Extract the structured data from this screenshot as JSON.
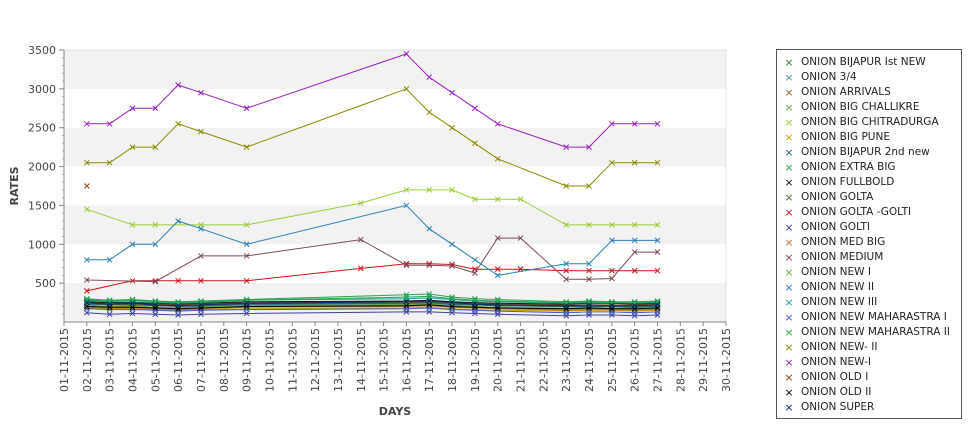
{
  "chart_data": {
    "type": "line",
    "xlabel": "DAYS",
    "ylabel": "RATES",
    "ylim": [
      0,
      3500
    ],
    "yticks": [
      "500",
      "1000",
      "1500",
      "2000",
      "2500",
      "3000",
      "3500"
    ],
    "grid": "horizontal bands",
    "legend_position": "right",
    "x": [
      "01-11-2015",
      "02-11-2015",
      "03-11-2015",
      "04-11-2015",
      "05-11-2015",
      "06-11-2015",
      "07-11-2015",
      "08-11-2015",
      "09-11-2015",
      "10-11-2015",
      "11-11-2015",
      "12-11-2015",
      "13-11-2015",
      "14-11-2015",
      "15-11-2015",
      "16-11-2015",
      "17-11-2015",
      "18-11-2015",
      "19-11-2015",
      "20-11-2015",
      "21-11-2015",
      "22-11-2015",
      "23-11-2015",
      "24-11-2015",
      "25-11-2015",
      "26-11-2015",
      "27-11-2015",
      "28-11-2015",
      "29-11-2015",
      "30-11-2015"
    ],
    "series": [
      {
        "name": " ONION BIJAPUR Ist NEW",
        "color": "#2e7d32",
        "values": [
          null,
          280,
          260,
          250,
          230,
          200,
          210,
          null,
          220,
          null,
          null,
          null,
          null,
          null,
          null,
          240,
          250,
          230,
          220,
          210,
          null,
          null,
          200,
          210,
          200,
          200,
          210,
          null,
          null,
          null
        ]
      },
      {
        "name": "ONION 3/4",
        "color": "#4e9a9a",
        "values": [
          null,
          220,
          200,
          210,
          190,
          180,
          200,
          null,
          220,
          null,
          null,
          null,
          null,
          null,
          null,
          230,
          240,
          220,
          200,
          190,
          null,
          null,
          170,
          180,
          180,
          170,
          190,
          null,
          null,
          null
        ]
      },
      {
        "name": "ONION ARRIVALS",
        "color": "#8b5a2b",
        "values": [
          null,
          250,
          240,
          240,
          230,
          220,
          230,
          null,
          250,
          null,
          null,
          null,
          null,
          null,
          null,
          260,
          270,
          250,
          240,
          230,
          null,
          null,
          220,
          220,
          220,
          220,
          230,
          null,
          null,
          null
        ]
      },
      {
        "name": "ONION BIG CHALLIKRE",
        "color": "#6aa84f",
        "values": [
          null,
          200,
          190,
          200,
          190,
          170,
          180,
          null,
          200,
          null,
          null,
          null,
          null,
          null,
          null,
          210,
          220,
          200,
          190,
          180,
          null,
          null,
          160,
          170,
          170,
          160,
          170,
          null,
          null,
          null
        ]
      },
      {
        "name": "ONION BIG CHITRADURGA",
        "color": "#9acd32",
        "values": [
          null,
          1450,
          null,
          1250,
          1250,
          null,
          1250,
          null,
          1250,
          null,
          null,
          null,
          null,
          1530,
          null,
          1700,
          1700,
          1700,
          1580,
          1580,
          1580,
          null,
          1250,
          1250,
          1250,
          1250,
          1250,
          null,
          null,
          null
        ]
      },
      {
        "name": "ONION BIG PUNE",
        "color": "#c8a000",
        "values": [
          null,
          180,
          170,
          170,
          160,
          150,
          160,
          null,
          170,
          null,
          null,
          null,
          null,
          null,
          null,
          180,
          190,
          170,
          160,
          150,
          null,
          null,
          140,
          150,
          150,
          140,
          150,
          null,
          null,
          null
        ]
      },
      {
        "name": "ONION BIJAPUR 2nd new",
        "color": "#1f5f7a",
        "values": [
          null,
          230,
          220,
          220,
          210,
          200,
          210,
          null,
          230,
          null,
          null,
          null,
          null,
          null,
          null,
          240,
          250,
          230,
          220,
          210,
          null,
          null,
          200,
          200,
          200,
          190,
          200,
          null,
          null,
          null
        ]
      },
      {
        "name": "ONION EXTRA BIG",
        "color": "#2f9e5a",
        "values": [
          null,
          300,
          280,
          290,
          270,
          260,
          270,
          null,
          290,
          null,
          null,
          null,
          null,
          null,
          null,
          350,
          360,
          320,
          300,
          290,
          null,
          null,
          260,
          270,
          260,
          260,
          270,
          null,
          null,
          null
        ]
      },
      {
        "name": "ONION FULLBOLD",
        "color": "#111111",
        "values": [
          null,
          260,
          250,
          250,
          240,
          230,
          240,
          null,
          260,
          null,
          null,
          null,
          null,
          null,
          null,
          270,
          280,
          260,
          250,
          240,
          null,
          null,
          230,
          240,
          240,
          230,
          240,
          null,
          null,
          null
        ]
      },
      {
        "name": "ONION GOLTA",
        "color": "#556b2f",
        "values": [
          null,
          240,
          230,
          230,
          220,
          210,
          220,
          null,
          240,
          null,
          null,
          null,
          null,
          null,
          null,
          250,
          260,
          240,
          230,
          220,
          null,
          null,
          210,
          220,
          210,
          210,
          220,
          null,
          null,
          null
        ]
      },
      {
        "name": "ONION GOLTA -GOLTI",
        "color": "#d0101a",
        "values": [
          null,
          400,
          null,
          530,
          530,
          530,
          530,
          null,
          530,
          null,
          null,
          null,
          null,
          690,
          null,
          750,
          750,
          740,
          680,
          680,
          680,
          null,
          660,
          660,
          660,
          660,
          660,
          null,
          null,
          null
        ]
      },
      {
        "name": "ONION GOLTI",
        "color": "#4040a0",
        "values": [
          null,
          120,
          100,
          110,
          100,
          90,
          100,
          null,
          110,
          null,
          null,
          null,
          null,
          null,
          null,
          130,
          130,
          120,
          110,
          100,
          null,
          null,
          80,
          90,
          90,
          80,
          90,
          null,
          null,
          null
        ]
      },
      {
        "name": "ONION MED BIG",
        "color": "#c07030",
        "values": [
          null,
          190,
          180,
          180,
          170,
          160,
          170,
          null,
          190,
          null,
          null,
          null,
          null,
          null,
          null,
          200,
          210,
          190,
          180,
          170,
          null,
          null,
          150,
          160,
          160,
          150,
          160,
          null,
          null,
          null
        ]
      },
      {
        "name": "ONION MEDIUM",
        "color": "#7b4a5a",
        "values": [
          null,
          540,
          null,
          null,
          520,
          null,
          850,
          null,
          850,
          null,
          null,
          null,
          null,
          1060,
          null,
          730,
          730,
          720,
          630,
          1080,
          1080,
          null,
          550,
          550,
          560,
          900,
          900,
          null,
          null,
          null
        ]
      },
      {
        "name": "ONION NEW I",
        "color": "#77aa33",
        "values": [
          null,
          210,
          200,
          200,
          190,
          180,
          190,
          null,
          210,
          null,
          null,
          null,
          null,
          null,
          null,
          220,
          230,
          210,
          200,
          190,
          null,
          null,
          180,
          190,
          180,
          180,
          190,
          null,
          null,
          null
        ]
      },
      {
        "name": "ONION NEW II",
        "color": "#2a7fb8",
        "values": [
          null,
          800,
          800,
          1000,
          1000,
          1300,
          1200,
          null,
          1000,
          null,
          null,
          null,
          null,
          null,
          null,
          1500,
          1200,
          1000,
          800,
          600,
          null,
          null,
          750,
          750,
          1050,
          1050,
          1050,
          null,
          null,
          null
        ]
      },
      {
        "name": "ONION NEW III",
        "color": "#1aa39a",
        "values": [
          null,
          270,
          260,
          260,
          250,
          240,
          250,
          null,
          280,
          null,
          null,
          null,
          null,
          null,
          null,
          300,
          310,
          290,
          270,
          260,
          null,
          null,
          240,
          250,
          250,
          240,
          250,
          null,
          null,
          null
        ]
      },
      {
        "name": "ONION NEW MAHARASTRA I",
        "color": "#3a5fcd",
        "values": [
          null,
          170,
          160,
          160,
          150,
          140,
          150,
          null,
          160,
          null,
          null,
          null,
          null,
          null,
          null,
          170,
          180,
          160,
          150,
          140,
          null,
          null,
          120,
          130,
          130,
          120,
          130,
          null,
          null,
          null
        ]
      },
      {
        "name": "ONION NEW MAHARASTRA II",
        "color": "#22aa44",
        "values": [
          null,
          290,
          270,
          280,
          260,
          250,
          260,
          null,
          280,
          null,
          null,
          null,
          null,
          null,
          null,
          320,
          330,
          300,
          280,
          270,
          null,
          null,
          250,
          260,
          250,
          250,
          260,
          null,
          null,
          null
        ]
      },
      {
        "name": "ONION NEW- II",
        "color": "#8a8a00",
        "values": [
          null,
          2050,
          2050,
          2250,
          2250,
          2550,
          2450,
          null,
          2250,
          null,
          null,
          null,
          null,
          null,
          null,
          3000,
          2700,
          2500,
          2300,
          2100,
          null,
          null,
          1750,
          1750,
          2050,
          2050,
          2050,
          null,
          null,
          null
        ]
      },
      {
        "name": "ONION NEW-I",
        "color": "#9a20c0",
        "values": [
          null,
          2550,
          2550,
          2750,
          2750,
          3050,
          2950,
          null,
          2750,
          null,
          null,
          null,
          null,
          null,
          null,
          3450,
          3150,
          2950,
          2750,
          2550,
          null,
          null,
          2250,
          2250,
          2550,
          2550,
          2550,
          null,
          null,
          null
        ]
      },
      {
        "name": "ONION OLD I",
        "color": "#8b4513",
        "values": [
          null,
          1750,
          null,
          null,
          null,
          null,
          null,
          null,
          null,
          null,
          null,
          null,
          null,
          null,
          null,
          null,
          null,
          null,
          null,
          null,
          null,
          null,
          null,
          null,
          null,
          null,
          null,
          null,
          null,
          null
        ]
      },
      {
        "name": "ONION OLD II",
        "color": "#000000",
        "values": [
          null,
          200,
          190,
          190,
          180,
          170,
          180,
          null,
          200,
          null,
          null,
          null,
          null,
          null,
          null,
          210,
          220,
          200,
          190,
          180,
          null,
          null,
          170,
          180,
          170,
          170,
          180,
          null,
          null,
          null
        ]
      },
      {
        "name": "ONION SUPER",
        "color": "#0a2a6a",
        "values": [
          null,
          250,
          230,
          240,
          220,
          210,
          220,
          null,
          240,
          null,
          null,
          null,
          null,
          null,
          null,
          260,
          270,
          250,
          230,
          220,
          null,
          null,
          210,
          220,
          210,
          210,
          220,
          null,
          null,
          null
        ]
      }
    ]
  }
}
